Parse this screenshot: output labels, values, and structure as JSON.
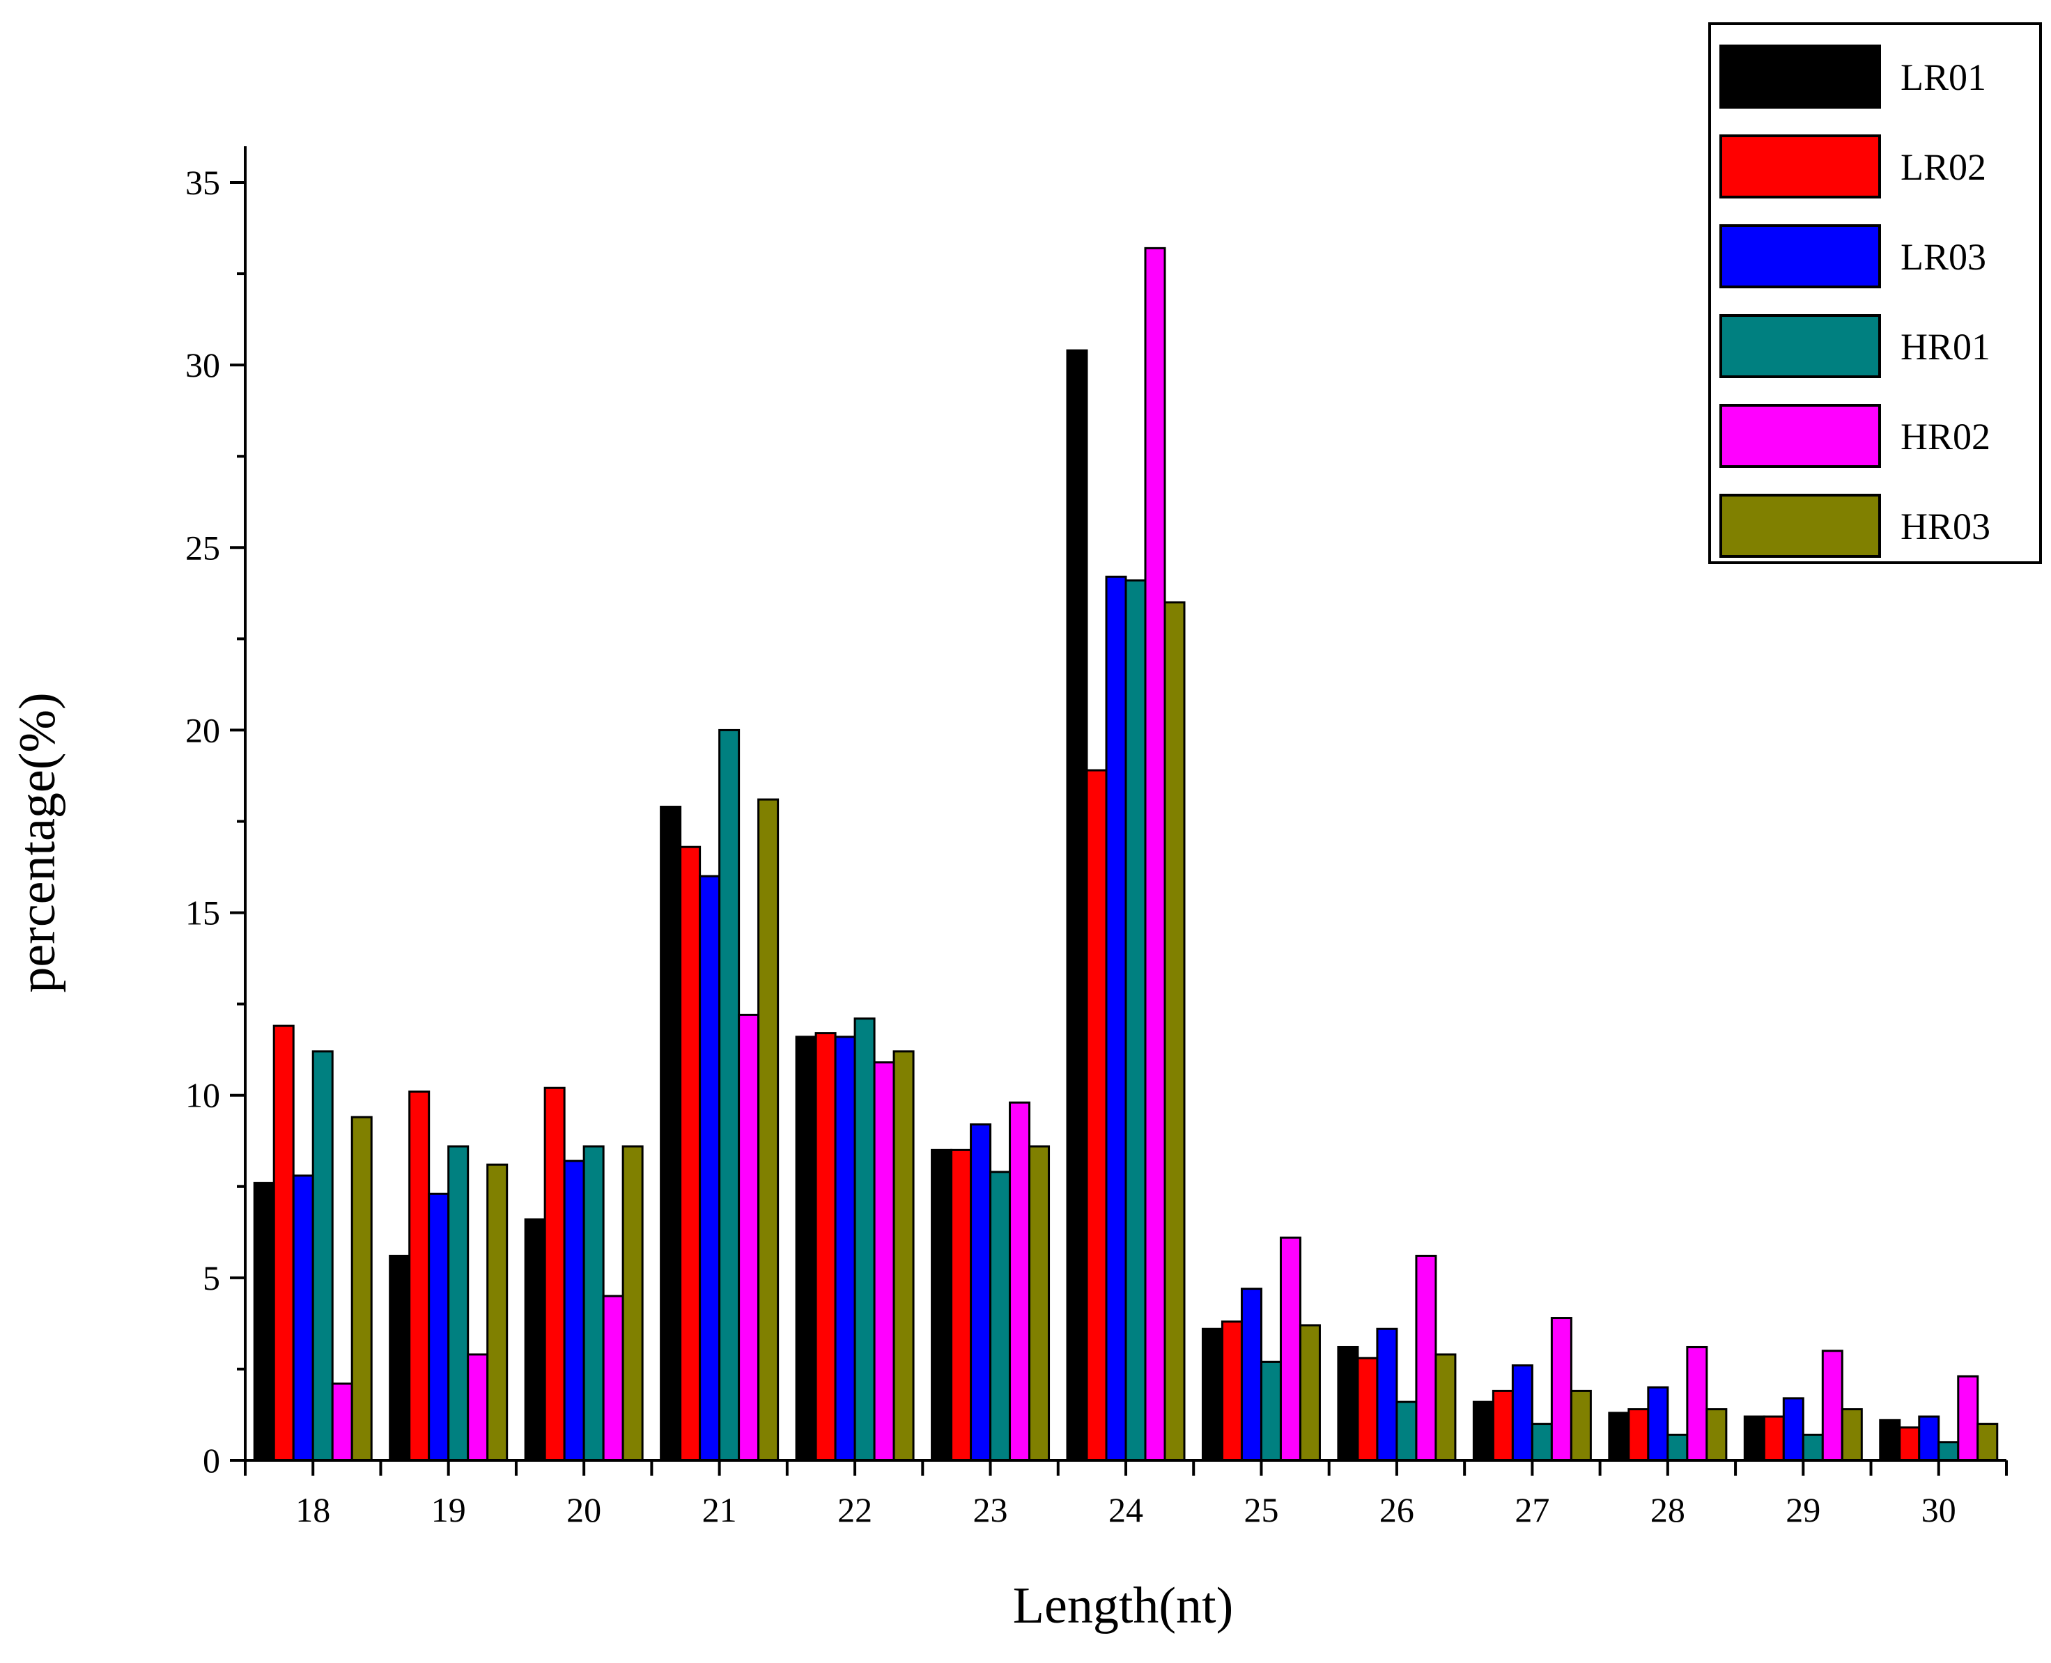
{
  "chart_data": {
    "type": "bar",
    "xlabel": "Length(nt)",
    "ylabel": "percentage(%)",
    "ylim": [
      0,
      35
    ],
    "yticks": [
      0,
      5,
      10,
      15,
      20,
      25,
      30,
      35
    ],
    "grid": false,
    "legend_position": "top-right",
    "categories": [
      "18",
      "19",
      "20",
      "21",
      "22",
      "23",
      "24",
      "25",
      "26",
      "27",
      "28",
      "29",
      "30"
    ],
    "series": [
      {
        "name": "LR01",
        "color": "#000000",
        "values": [
          7.6,
          5.6,
          6.6,
          17.9,
          11.6,
          8.5,
          30.4,
          3.6,
          3.1,
          1.6,
          1.3,
          1.2,
          1.1
        ]
      },
      {
        "name": "LR02",
        "color": "#ff0000",
        "values": [
          11.9,
          10.1,
          10.2,
          16.8,
          11.7,
          8.5,
          18.9,
          3.8,
          2.8,
          1.9,
          1.4,
          1.2,
          0.9
        ]
      },
      {
        "name": "LR03",
        "color": "#0000ff",
        "values": [
          7.8,
          7.3,
          8.2,
          16.0,
          11.6,
          9.2,
          24.2,
          4.7,
          3.6,
          2.6,
          2.0,
          1.7,
          1.2
        ]
      },
      {
        "name": "HR01",
        "color": "#008080",
        "values": [
          11.2,
          8.6,
          8.6,
          20.0,
          12.1,
          7.9,
          24.1,
          2.7,
          1.6,
          1.0,
          0.7,
          0.7,
          0.5
        ]
      },
      {
        "name": "HR02",
        "color": "#ff00ff",
        "values": [
          2.1,
          2.9,
          4.5,
          12.2,
          10.9,
          9.8,
          33.2,
          6.1,
          5.6,
          3.9,
          3.1,
          3.0,
          2.3
        ]
      },
      {
        "name": "HR03",
        "color": "#808000",
        "values": [
          9.4,
          8.1,
          8.6,
          18.1,
          11.2,
          8.6,
          23.5,
          3.7,
          2.9,
          1.9,
          1.4,
          1.4,
          1.0
        ]
      }
    ]
  }
}
